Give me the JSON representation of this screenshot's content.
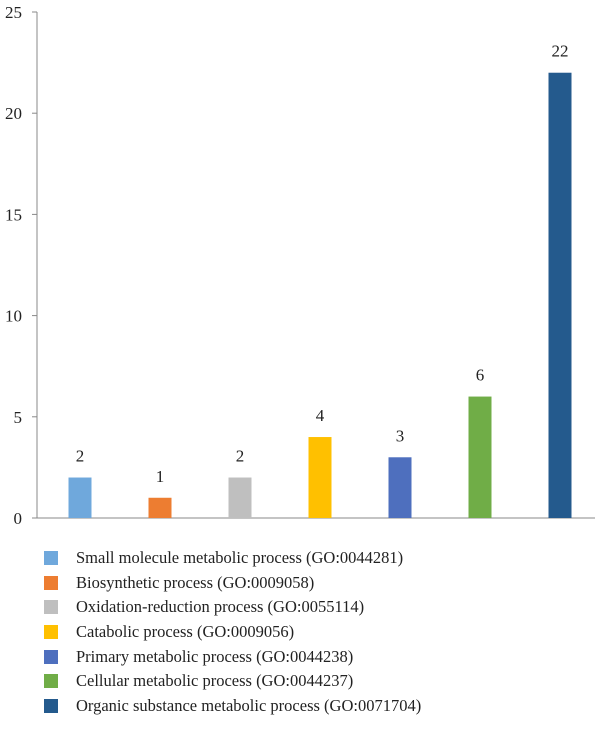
{
  "chart_data": {
    "type": "bar",
    "categories": [
      "Small molecule metabolic process (GO:0044281)",
      "Biosynthetic process (GO:0009058)",
      "Oxidation-reduction process (GO:0055114)",
      "Catabolic process (GO:0009056)",
      "Primary metabolic process (GO:0044238)",
      "Cellular metabolic process (GO:0044237)",
      "Organic substance metabolic process (GO:0071704)"
    ],
    "values": [
      2,
      1,
      2,
      4,
      3,
      6,
      22
    ],
    "data_labels": [
      "2",
      "1",
      "2",
      "4",
      "3",
      "6",
      "22"
    ],
    "colors": [
      "#6fa8dc",
      "#ed7d31",
      "#bfbfbf",
      "#ffc000",
      "#4e6fbe",
      "#70ad47",
      "#245a8d"
    ],
    "ylim": [
      0,
      25
    ],
    "yticks": [
      0,
      5,
      10,
      15,
      20,
      25
    ],
    "ytick_labels": [
      "0",
      "5",
      "10",
      "15",
      "20",
      "25"
    ],
    "title": "",
    "xlabel": "",
    "ylabel": "",
    "grid": false,
    "legend_position": "bottom"
  }
}
